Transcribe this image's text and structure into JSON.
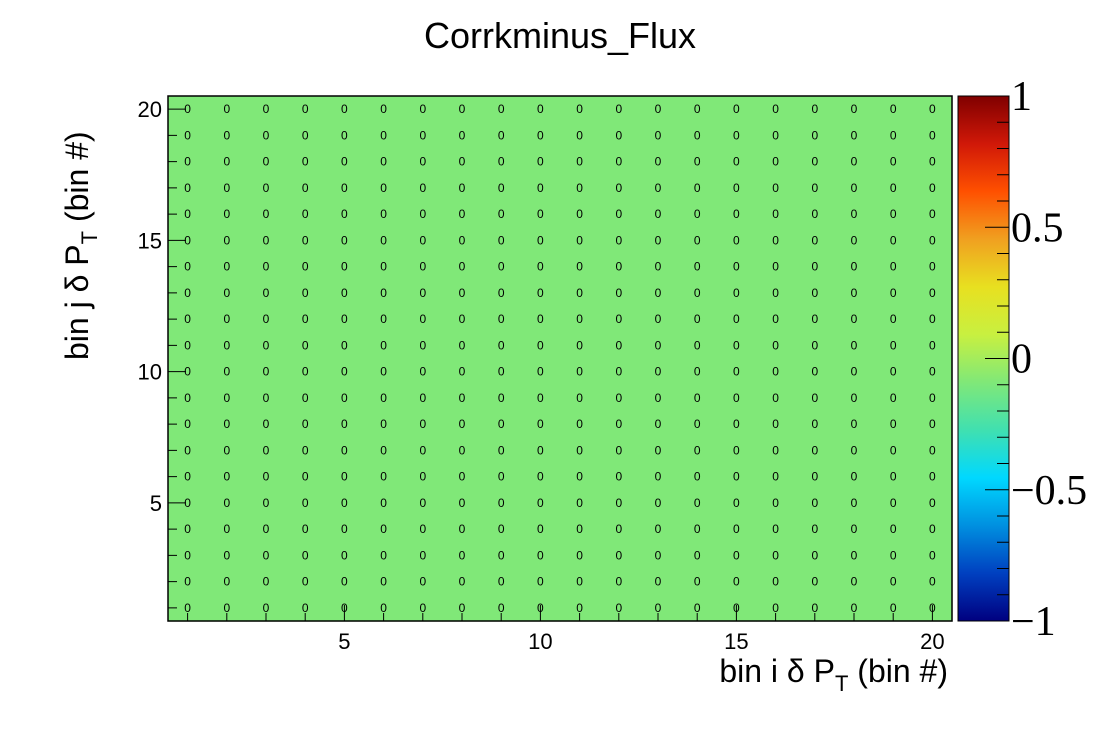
{
  "chart_data": {
    "type": "heatmap",
    "title": "Corrkminus_Flux",
    "xlabel": "bin i δ P_T (bin #)",
    "ylabel": "bin j δ P_T (bin #)",
    "xlabel_parts": {
      "pre": "bin i  δ P",
      "sub": "T",
      "post": " (bin #)"
    },
    "ylabel_parts": {
      "pre": "bin j δ P",
      "sub": "T",
      "post": " (bin #)"
    },
    "xlim": [
      0.5,
      20.5
    ],
    "ylim": [
      0.5,
      20.5
    ],
    "x_ticks": [
      5,
      10,
      15,
      20
    ],
    "y_ticks": [
      5,
      10,
      15,
      20
    ],
    "x_bins": [
      1,
      2,
      3,
      4,
      5,
      6,
      7,
      8,
      9,
      10,
      11,
      12,
      13,
      14,
      15,
      16,
      17,
      18,
      19,
      20
    ],
    "y_bins": [
      1,
      2,
      3,
      4,
      5,
      6,
      7,
      8,
      9,
      10,
      11,
      12,
      13,
      14,
      15,
      16,
      17,
      18,
      19,
      20
    ],
    "cell_value": 0,
    "cell_text": "0",
    "cell_color": "#80e878",
    "zlim": [
      -1,
      1
    ],
    "z_ticks": [
      "1",
      "0.5",
      "0",
      "−0.5",
      "−1"
    ],
    "z_tick_values": [
      1,
      0.5,
      0,
      -0.5,
      -1
    ],
    "palette": [
      "#000080",
      "#0040c0",
      "#0090e0",
      "#00d8ff",
      "#40e0b0",
      "#80e878",
      "#c8f040",
      "#e8e020",
      "#f0a020",
      "#ff5000",
      "#d01808",
      "#800000"
    ]
  }
}
